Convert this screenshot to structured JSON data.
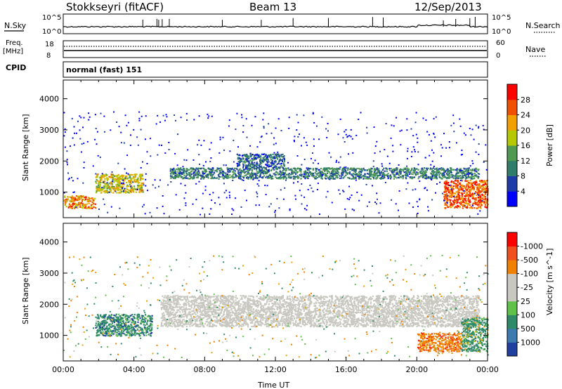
{
  "header": {
    "radar": "Stokkseyri (fitACF)",
    "beam": "Beam 13",
    "date": "12/Sep/2013"
  },
  "noise_panel": {
    "left_label": "N.Sky",
    "right_label": "N.Search",
    "left_ticks": [
      "10^5",
      "10^0"
    ],
    "right_ticks": [
      "10^5",
      "10^0"
    ]
  },
  "freq_panel": {
    "left_label_1": "Freq.",
    "left_label_2": "[MHz]",
    "right_label": "Nave",
    "left_ticks": [
      "18",
      "8"
    ],
    "right_ticks": [
      "60",
      "0"
    ]
  },
  "cpid": {
    "label": "CPID",
    "mode": "normal (fast) 151"
  },
  "chart_data": [
    {
      "type": "heatmap",
      "quantity": "Power",
      "ylabel": "Slant Range [km]",
      "ylim": [
        180,
        4600
      ],
      "yticks": [
        "1000",
        "2000",
        "3000",
        "4000"
      ],
      "xlim_hours": [
        0,
        24
      ],
      "colorbar_label": "Power [dB]",
      "colorbar_ticks": [
        "4",
        "8",
        "12",
        "16",
        "20",
        "24",
        "28"
      ],
      "colorbar_colors": [
        "#0000ff",
        "#1e3ca8",
        "#2f7d6a",
        "#4f9a50",
        "#b5c800",
        "#f0a000",
        "#f05000",
        "#ff0000"
      ],
      "regions_approx": [
        {
          "t": [
            6.0,
            23.5
          ],
          "range_km": [
            1450,
            1800
          ],
          "power_db": 12
        },
        {
          "t": [
            0.0,
            1.8
          ],
          "range_km": [
            500,
            900
          ],
          "power_db": 24
        },
        {
          "t": [
            1.8,
            4.5
          ],
          "range_km": [
            1000,
            1600
          ],
          "power_db": 20
        },
        {
          "t": [
            21.5,
            24.0
          ],
          "range_km": [
            500,
            1400
          ],
          "power_db": 26
        },
        {
          "t": [
            9.8,
            12.5
          ],
          "range_km": [
            1800,
            2250
          ],
          "power_db": 10
        }
      ]
    },
    {
      "type": "heatmap",
      "quantity": "Velocity",
      "ylabel": "Slant Range [km]",
      "ylim": [
        180,
        4600
      ],
      "yticks": [
        "1000",
        "2000",
        "3000",
        "4000"
      ],
      "xlim_hours": [
        0,
        24
      ],
      "xticks": [
        "00:00",
        "04:00",
        "08:00",
        "12:00",
        "16:00",
        "20:00",
        "00:00"
      ],
      "xlabel": "Time UT",
      "colorbar_label": "Velocity [m s^-1]",
      "colorbar_ticks": [
        "1000",
        "500",
        "100",
        "25",
        "-25",
        "-100",
        "-500",
        "-1000"
      ],
      "colorbar_colors": [
        "#2040a0",
        "#3c7ab0",
        "#2f8a6a",
        "#5fc04a",
        "#c8c8c0",
        "#c8c8c0",
        "#f08000",
        "#f05020",
        "#ff0000"
      ],
      "regions_approx": [
        {
          "t": [
            5.5,
            23.5
          ],
          "range_km": [
            1300,
            2300
          ],
          "velocity": 0
        },
        {
          "t": [
            1.8,
            5.0
          ],
          "range_km": [
            1000,
            1700
          ],
          "velocity": 300
        },
        {
          "t": [
            20.0,
            22.5
          ],
          "range_km": [
            500,
            1100
          ],
          "velocity": -300
        },
        {
          "t": [
            22.5,
            24.0
          ],
          "range_km": [
            500,
            1600
          ],
          "velocity": 200
        }
      ]
    }
  ],
  "colors": {
    "frame": "#000000",
    "background": "#ffffff"
  }
}
